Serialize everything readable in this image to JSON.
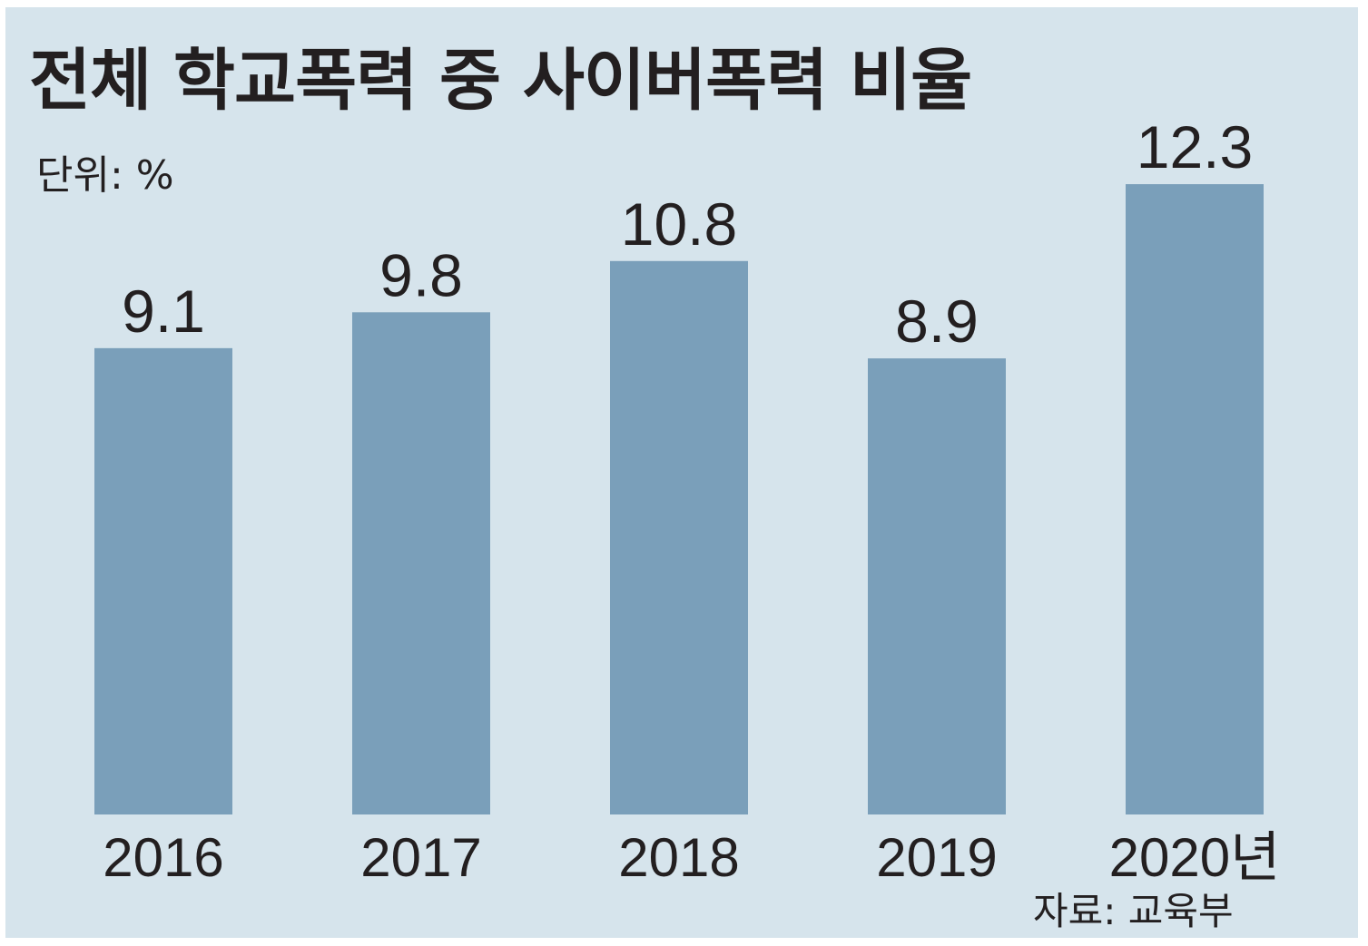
{
  "title": "전체 학교폭력 중 사이버폭력 비율",
  "unit_label": "단위: %",
  "source_label": "자료: 교육부",
  "colors": {
    "background": "#d6e4ec",
    "bar": "#7a9fba",
    "text": "#231f20"
  },
  "chart_data": {
    "type": "bar",
    "title": "전체 학교폭력 중 사이버폭력 비율",
    "categories": [
      "2016",
      "2017",
      "2018",
      "2019",
      "2020년"
    ],
    "values": [
      9.1,
      9.8,
      10.8,
      8.9,
      12.3
    ],
    "value_labels": [
      "9.1",
      "9.8",
      "10.8",
      "8.9",
      "12.3"
    ],
    "ylabel": "",
    "xlabel": "",
    "grid": false,
    "legend": "none"
  }
}
